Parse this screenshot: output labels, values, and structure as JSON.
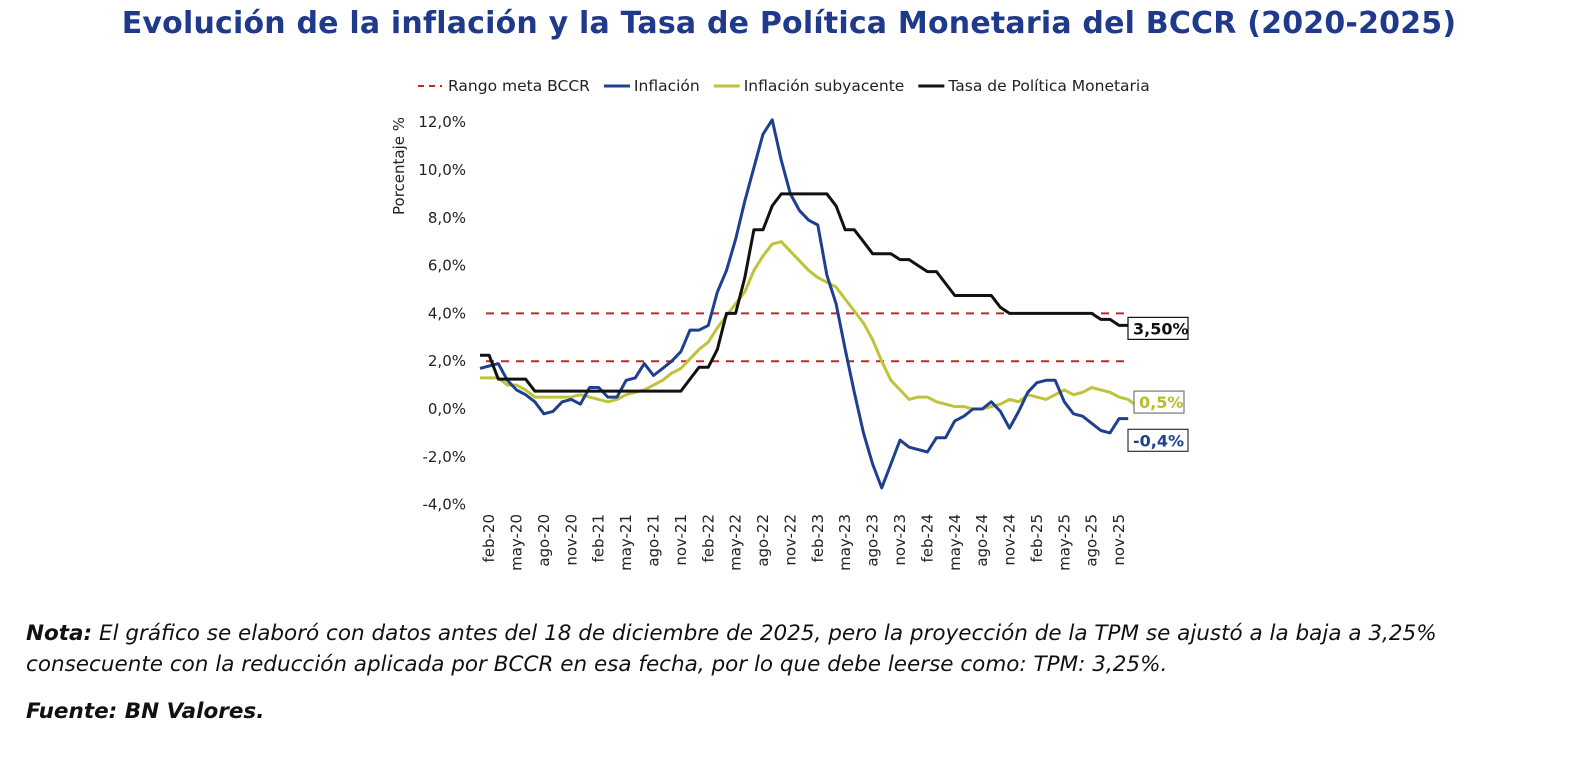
{
  "title": "Evolución de la inflación y la Tasa de Política Monetaria del BCCR (2020-2025)",
  "note": {
    "label": "Nota:",
    "text": "El gráfico se elaboró con datos antes del 18 de diciembre de 2025, pero la proyección de la TPM se ajustó a la baja a 3,25% consecuente con la reducción aplicada por BCCR en esa fecha, por lo que debe leerse como: TPM: 3,25%."
  },
  "source": "Fuente: BN Valores.",
  "chart_data": {
    "type": "line",
    "title": "Evolución de la inflación y la Tasa de Política Monetaria del BCCR (2020-2025)",
    "xlabel": "",
    "ylabel": "Porcentaje %",
    "ylim": [
      -4,
      12
    ],
    "y_ticks": [
      -4,
      -2,
      0,
      2,
      4,
      6,
      8,
      10,
      12
    ],
    "y_tick_labels": [
      "-4,0%",
      "-2,0%",
      "0,0%",
      "2,0%",
      "4,0%",
      "6,0%",
      "8,0%",
      "10,0%",
      "12,0%"
    ],
    "x_start": "ene-20",
    "x_frequency": "monthly",
    "x_tick_labels": [
      "feb-20",
      "may-20",
      "ago-20",
      "nov-20",
      "feb-21",
      "may-21",
      "ago-21",
      "nov-21",
      "feb-22",
      "may-22",
      "ago-22",
      "nov-22",
      "feb-23",
      "may-23",
      "ago-23",
      "nov-23",
      "feb-24",
      "may-24",
      "ago-24",
      "nov-24",
      "feb-25",
      "may-25",
      "ago-25",
      "nov-25"
    ],
    "x_tick_month_index": [
      1,
      4,
      7,
      10,
      13,
      16,
      19,
      22,
      25,
      28,
      31,
      34,
      37,
      40,
      43,
      46,
      49,
      52,
      55,
      58,
      61,
      64,
      67,
      70
    ],
    "grid": false,
    "legend_position": "top",
    "reference_lines": [
      {
        "name": "Rango meta BCCR",
        "values": [
          2,
          4
        ],
        "color": "#c0282d",
        "style": "dashed"
      }
    ],
    "series": [
      {
        "name": "Inflación",
        "color": "#1f3f8f",
        "end_label": "-0,4%",
        "values": [
          1.7,
          1.8,
          1.9,
          1.2,
          0.8,
          0.6,
          0.3,
          -0.2,
          -0.1,
          0.3,
          0.4,
          0.2,
          0.9,
          0.9,
          0.5,
          0.5,
          1.2,
          1.3,
          1.9,
          1.4,
          1.7,
          2.0,
          2.4,
          3.3,
          3.3,
          3.5,
          4.9,
          5.8,
          7.1,
          8.7,
          10.1,
          11.5,
          12.1,
          10.4,
          9.0,
          8.3,
          7.9,
          7.7,
          5.6,
          4.4,
          2.5,
          0.7,
          -1.0,
          -2.3,
          -3.3,
          -2.3,
          -1.3,
          -1.6,
          -1.7,
          -1.8,
          -1.2,
          -1.2,
          -0.5,
          -0.3,
          0.0,
          0.0,
          0.3,
          -0.1,
          -0.8,
          -0.1,
          0.7,
          1.1,
          1.2,
          1.2,
          0.3,
          -0.2,
          -0.3,
          -0.6,
          -0.9,
          -1.0,
          -0.4,
          -0.4
        ]
      },
      {
        "name": "Inflación subyacente",
        "color": "#bfc33a",
        "end_label": "0,5%",
        "values": [
          1.3,
          1.3,
          1.3,
          1.0,
          1.0,
          0.8,
          0.5,
          0.5,
          0.5,
          0.5,
          0.5,
          0.6,
          0.5,
          0.4,
          0.3,
          0.4,
          0.6,
          0.7,
          0.8,
          1.0,
          1.2,
          1.5,
          1.7,
          2.1,
          2.5,
          2.8,
          3.4,
          3.9,
          4.4,
          4.9,
          5.8,
          6.4,
          6.9,
          7.0,
          6.6,
          6.2,
          5.8,
          5.5,
          5.3,
          5.1,
          4.6,
          4.1,
          3.6,
          2.9,
          2.0,
          1.2,
          0.8,
          0.4,
          0.5,
          0.5,
          0.3,
          0.2,
          0.1,
          0.1,
          0.0,
          0.0,
          0.1,
          0.2,
          0.4,
          0.3,
          0.6,
          0.5,
          0.4,
          0.6,
          0.8,
          0.6,
          0.7,
          0.9,
          0.8,
          0.7,
          0.5,
          0.4,
          0.1,
          0.3,
          0.5
        ]
      },
      {
        "name": "Tasa de Política Monetaria",
        "color": "#111111",
        "end_label": "3,50%",
        "values": [
          2.25,
          2.25,
          1.25,
          1.25,
          1.25,
          1.25,
          0.75,
          0.75,
          0.75,
          0.75,
          0.75,
          0.75,
          0.75,
          0.75,
          0.75,
          0.75,
          0.75,
          0.75,
          0.75,
          0.75,
          0.75,
          0.75,
          0.75,
          1.25,
          1.75,
          1.75,
          2.5,
          4.0,
          4.0,
          5.5,
          7.5,
          7.5,
          8.5,
          9.0,
          9.0,
          9.0,
          9.0,
          9.0,
          9.0,
          8.5,
          7.5,
          7.5,
          7.0,
          6.5,
          6.5,
          6.5,
          6.25,
          6.25,
          6.0,
          5.75,
          5.75,
          5.25,
          4.75,
          4.75,
          4.75,
          4.75,
          4.75,
          4.25,
          4.0,
          4.0,
          4.0,
          4.0,
          4.0,
          4.0,
          4.0,
          4.0,
          4.0,
          4.0,
          3.75,
          3.75,
          3.5,
          3.5,
          3.5
        ]
      }
    ],
    "legend": [
      {
        "label": "Rango meta BCCR",
        "style": "dashed",
        "color": "#c0282d"
      },
      {
        "label": "Inflación",
        "style": "solid",
        "color": "#1f3f8f"
      },
      {
        "label": "Inflación subyacente",
        "style": "solid",
        "color": "#bfc33a"
      },
      {
        "label": "Tasa de Política Monetaria",
        "style": "solid",
        "color": "#111111"
      }
    ]
  }
}
